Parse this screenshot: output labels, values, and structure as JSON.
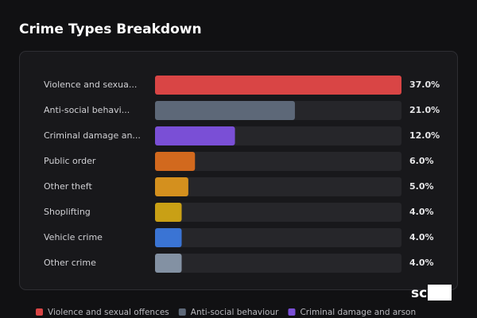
{
  "chart_data": {
    "type": "bar",
    "orientation": "horizontal",
    "title": "Crime Types Breakdown",
    "categories": [
      "Violence and sexua...",
      "Anti-social behavi...",
      "Criminal damage an...",
      "Public order",
      "Other theft",
      "Shoplifting",
      "Vehicle crime",
      "Other crime"
    ],
    "values": [
      37,
      21,
      12,
      6,
      5,
      4,
      4,
      4
    ],
    "value_labels": [
      "37.0%",
      "21.0%",
      "12.0%",
      "6.0%",
      "5.0%",
      "4.0%",
      "4.0%",
      "4.0%"
    ],
    "colors": [
      "#d94545",
      "#5d6878",
      "#7a4fd6",
      "#d2691e",
      "#d4901e",
      "#c9a015",
      "#3a74d4",
      "#8391a3"
    ],
    "xlim": [
      0,
      37
    ],
    "legend": [
      {
        "name": "Violence and sexual offences",
        "color": "#d94545"
      },
      {
        "name": "Anti-social behaviour",
        "color": "#5d6878"
      },
      {
        "name": "Criminal damage and arson",
        "color": "#7a4fd6"
      }
    ]
  },
  "watermark": "scOS"
}
